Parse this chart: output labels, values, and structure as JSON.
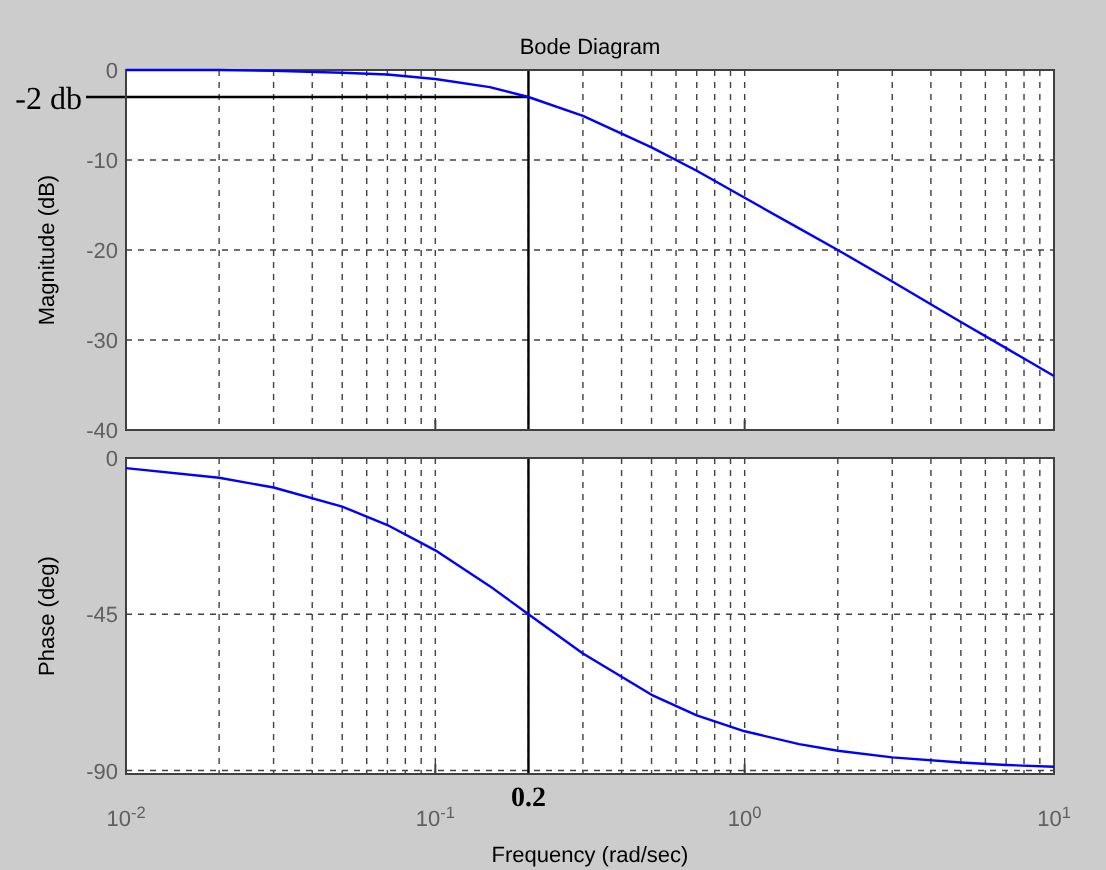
{
  "chart_data": [
    {
      "type": "line",
      "title": "Bode Diagram",
      "ylabel": "Magnitude (dB)",
      "log": "x",
      "xlim": [
        0.01,
        10
      ],
      "xticks": [
        0.01,
        0.1,
        1,
        10
      ],
      "ylim": [
        -40,
        0
      ],
      "yticks": [
        -40,
        -30,
        -20,
        -10,
        0
      ],
      "grid": true,
      "tick_labels": "y",
      "x": [
        0.01,
        0.02,
        0.03,
        0.05,
        0.07,
        0.1,
        0.15,
        0.2,
        0.3,
        0.5,
        0.7,
        1,
        1.5,
        2,
        3,
        5,
        7,
        10
      ],
      "series": [
        {
          "color": "#0000ff",
          "values": [
            0,
            0,
            -0.1,
            -0.3,
            -0.5,
            -1,
            -1.9,
            -3,
            -5.1,
            -8.6,
            -11.2,
            -14.2,
            -17.6,
            -20,
            -23.5,
            -28,
            -30.9,
            -34
          ]
        }
      ],
      "ref_lines": [
        {
          "axis": "y",
          "value": -3,
          "label": "-2 db",
          "color": "#000000"
        },
        {
          "axis": "x",
          "value": 0.2,
          "color": "#000000"
        }
      ]
    },
    {
      "type": "line",
      "xlabel": "Frequency  (rad/sec)",
      "ylabel": "Phase (deg)",
      "log": "x",
      "xlim": [
        0.01,
        10
      ],
      "xticks": [
        {
          "value": 0.01,
          "label": "10$^{-2}$"
        },
        {
          "value": 0.1,
          "label": "10$^{-1}$"
        },
        {
          "value": 1,
          "label": "10$^{0}$"
        },
        {
          "value": 10,
          "label": "10$^{1}$"
        }
      ],
      "ylim": [
        -91,
        0
      ],
      "yticks": [
        -90,
        -45,
        0
      ],
      "grid": true,
      "x": [
        0.01,
        0.02,
        0.03,
        0.05,
        0.07,
        0.1,
        0.15,
        0.2,
        0.3,
        0.5,
        0.7,
        1,
        1.5,
        2,
        3,
        5,
        7,
        10
      ],
      "series": [
        {
          "color": "#0000ff",
          "values": [
            -2.9,
            -5.7,
            -8.5,
            -14,
            -19.3,
            -26.6,
            -36.9,
            -45,
            -56.3,
            -68.2,
            -74.1,
            -78.7,
            -82.4,
            -84.3,
            -86.2,
            -87.7,
            -88.4,
            -88.9
          ]
        }
      ],
      "ref_lines": [
        {
          "axis": "x",
          "value": 0.2,
          "label": "0.2",
          "color": "#000000"
        }
      ]
    }
  ]
}
